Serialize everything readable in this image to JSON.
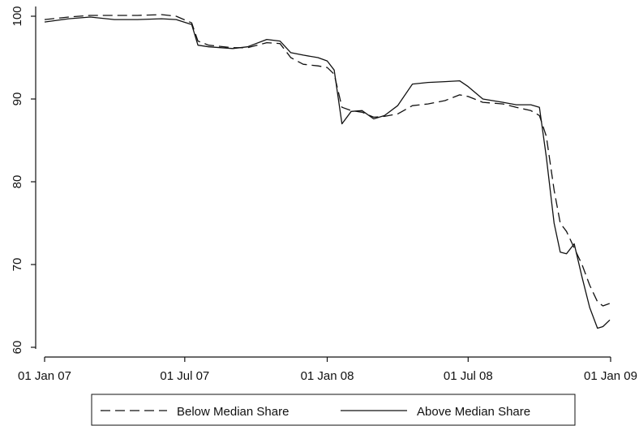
{
  "chart_data": {
    "type": "line",
    "title": "",
    "xlabel": "",
    "ylabel": "",
    "x_tick_labels": [
      "01 Jan 07",
      "01 Jul 07",
      "01 Jan 08",
      "01 Jul 08",
      "01 Jan 09"
    ],
    "x_tick_dates": [
      "2007-01-01",
      "2007-07-01",
      "2008-01-01",
      "2008-07-01",
      "2009-01-01"
    ],
    "y_ticks": [
      60,
      70,
      80,
      90,
      100
    ],
    "ylim": [
      60,
      100
    ],
    "grid": false,
    "legend_position": "bottom",
    "series": [
      {
        "name": "Below Median Share",
        "style": "dashed",
        "color": "#111111",
        "points": [
          [
            "2007-01-01",
            99.6
          ],
          [
            "2007-02-01",
            99.9
          ],
          [
            "2007-03-01",
            100.1
          ],
          [
            "2007-04-01",
            100.1
          ],
          [
            "2007-05-01",
            100.1
          ],
          [
            "2007-06-01",
            100.2
          ],
          [
            "2007-06-20",
            100.0
          ],
          [
            "2007-07-10",
            99.2
          ],
          [
            "2007-07-18",
            97.0
          ],
          [
            "2007-08-01",
            96.5
          ],
          [
            "2007-09-01",
            96.2
          ],
          [
            "2007-09-20",
            96.2
          ],
          [
            "2007-10-15",
            96.8
          ],
          [
            "2007-11-01",
            96.7
          ],
          [
            "2007-11-15",
            95.0
          ],
          [
            "2007-12-01",
            94.2
          ],
          [
            "2007-12-20",
            94.0
          ],
          [
            "2008-01-01",
            93.8
          ],
          [
            "2008-01-10",
            93.0
          ],
          [
            "2008-01-20",
            89.0
          ],
          [
            "2008-02-01",
            88.6
          ],
          [
            "2008-02-15",
            88.4
          ],
          [
            "2008-03-01",
            87.8
          ],
          [
            "2008-03-15",
            87.9
          ],
          [
            "2008-04-01",
            88.2
          ],
          [
            "2008-04-20",
            89.2
          ],
          [
            "2008-05-10",
            89.4
          ],
          [
            "2008-06-01",
            89.8
          ],
          [
            "2008-06-20",
            90.5
          ],
          [
            "2008-07-01",
            90.3
          ],
          [
            "2008-07-20",
            89.6
          ],
          [
            "2008-08-15",
            89.4
          ],
          [
            "2008-09-01",
            89.0
          ],
          [
            "2008-09-20",
            88.6
          ],
          [
            "2008-10-01",
            88.0
          ],
          [
            "2008-10-10",
            85.5
          ],
          [
            "2008-10-20",
            79.0
          ],
          [
            "2008-10-28",
            75.0
          ],
          [
            "2008-11-05",
            74.0
          ],
          [
            "2008-11-15",
            72.0
          ],
          [
            "2008-11-25",
            70.0
          ],
          [
            "2008-12-05",
            67.5
          ],
          [
            "2008-12-15",
            65.5
          ],
          [
            "2008-12-22",
            65.0
          ],
          [
            "2008-12-31",
            65.3
          ]
        ]
      },
      {
        "name": "Above Median Share",
        "style": "solid",
        "color": "#111111",
        "points": [
          [
            "2007-01-01",
            99.3
          ],
          [
            "2007-02-01",
            99.7
          ],
          [
            "2007-03-01",
            99.9
          ],
          [
            "2007-04-01",
            99.6
          ],
          [
            "2007-05-01",
            99.6
          ],
          [
            "2007-06-01",
            99.7
          ],
          [
            "2007-06-20",
            99.6
          ],
          [
            "2007-07-10",
            99.0
          ],
          [
            "2007-07-18",
            96.5
          ],
          [
            "2007-08-01",
            96.3
          ],
          [
            "2007-09-01",
            96.1
          ],
          [
            "2007-09-20",
            96.3
          ],
          [
            "2007-10-15",
            97.2
          ],
          [
            "2007-11-01",
            97.0
          ],
          [
            "2007-11-15",
            95.6
          ],
          [
            "2007-12-01",
            95.3
          ],
          [
            "2007-12-20",
            95.0
          ],
          [
            "2008-01-01",
            94.6
          ],
          [
            "2008-01-10",
            93.5
          ],
          [
            "2008-01-20",
            87.0
          ],
          [
            "2008-02-01",
            88.5
          ],
          [
            "2008-02-15",
            88.6
          ],
          [
            "2008-03-01",
            87.6
          ],
          [
            "2008-03-15",
            88.0
          ],
          [
            "2008-04-01",
            89.2
          ],
          [
            "2008-04-20",
            91.8
          ],
          [
            "2008-05-10",
            92.0
          ],
          [
            "2008-06-01",
            92.1
          ],
          [
            "2008-06-20",
            92.2
          ],
          [
            "2008-07-01",
            91.5
          ],
          [
            "2008-07-20",
            90.0
          ],
          [
            "2008-08-15",
            89.6
          ],
          [
            "2008-09-01",
            89.3
          ],
          [
            "2008-09-20",
            89.3
          ],
          [
            "2008-10-01",
            89.0
          ],
          [
            "2008-10-10",
            83.0
          ],
          [
            "2008-10-20",
            75.0
          ],
          [
            "2008-10-28",
            71.5
          ],
          [
            "2008-11-05",
            71.3
          ],
          [
            "2008-11-15",
            72.5
          ],
          [
            "2008-11-25",
            68.5
          ],
          [
            "2008-12-05",
            64.8
          ],
          [
            "2008-12-15",
            62.3
          ],
          [
            "2008-12-22",
            62.5
          ],
          [
            "2008-12-31",
            63.3
          ]
        ]
      }
    ]
  }
}
